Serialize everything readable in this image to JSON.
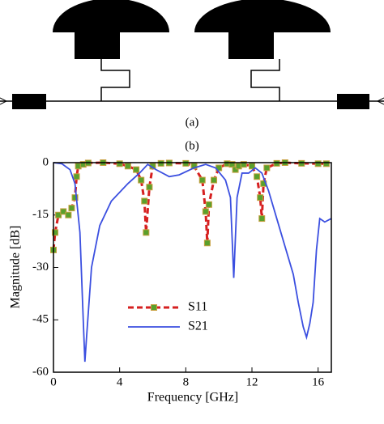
{
  "figure": {
    "label_a": "(a)",
    "label_b": "(b)"
  },
  "chart_data": {
    "type": "line",
    "xlabel": "Frequency [GHz]",
    "ylabel": "Magnitude [dB]",
    "xlim": [
      0,
      16.8
    ],
    "ylim": [
      -60,
      0
    ],
    "xticks": [
      0,
      4,
      8,
      12,
      16
    ],
    "yticks": [
      0,
      -15,
      -30,
      -45,
      -60
    ],
    "series": [
      {
        "name": "S11",
        "color": "#d62020",
        "marker_color": "#5aa02c",
        "dashed": true,
        "x": [
          0,
          0.1,
          0.3,
          0.6,
          0.9,
          1.1,
          1.3,
          1.4,
          1.5,
          1.8,
          2.1,
          3,
          4,
          4.5,
          5,
          5.3,
          5.5,
          5.6,
          5.8,
          6.0,
          6.5,
          7,
          8,
          8.5,
          9,
          9.2,
          9.3,
          9.4,
          9.7,
          10,
          10.5,
          10.8,
          11,
          11.2,
          11.5,
          12,
          12.3,
          12.5,
          12.6,
          12.7,
          12.9,
          13.5,
          14,
          15,
          16,
          16.5
        ],
        "values": [
          -25,
          -20,
          -15,
          -14,
          -15,
          -13,
          -10,
          -4,
          -1,
          -0.5,
          -0.1,
          0,
          -0.3,
          -1,
          -2,
          -5,
          -11,
          -20,
          -7,
          -1,
          -0.2,
          -0.1,
          -0.2,
          -1,
          -5,
          -14,
          -23,
          -12,
          -5,
          -1.5,
          -0.3,
          -0.5,
          -2,
          -1,
          -0.5,
          -1,
          -4,
          -10,
          -16,
          -6,
          -1.5,
          -0.2,
          0,
          -0.2,
          -0.3,
          -0.3
        ]
      },
      {
        "name": "S21",
        "color": "#3b4fe0",
        "dashed": false,
        "x": [
          0,
          0.5,
          1,
          1.3,
          1.6,
          1.8,
          1.9,
          2.0,
          2.3,
          2.8,
          3.5,
          4.5,
          5.2,
          5.7,
          6.2,
          7,
          7.6,
          8.5,
          9.2,
          9.8,
          10.4,
          10.7,
          10.9,
          11.1,
          11.4,
          11.8,
          12.2,
          12.6,
          13,
          13.5,
          14,
          14.5,
          14.8,
          15.1,
          15.3,
          15.5,
          15.7,
          15.9,
          16.1,
          16.4,
          16.8
        ],
        "values": [
          0,
          -0.3,
          -2,
          -6,
          -20,
          -45,
          -57,
          -50,
          -30,
          -18,
          -11,
          -6,
          -3,
          -0.5,
          -2,
          -4,
          -3.5,
          -1.5,
          -0.5,
          -1.5,
          -5,
          -10,
          -33,
          -10,
          -3,
          -3,
          -1.5,
          -3,
          -8,
          -16,
          -24,
          -32,
          -40,
          -47,
          -50,
          -46,
          -40,
          -25,
          -16,
          -17,
          -16
        ]
      }
    ]
  }
}
